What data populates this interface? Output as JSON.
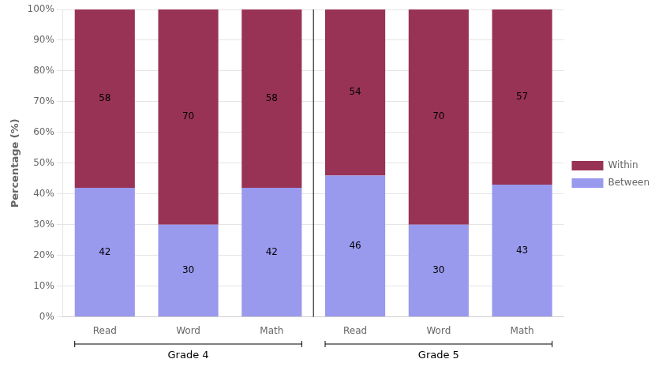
{
  "chart_data": {
    "type": "bar",
    "stacked": true,
    "data_labels": true,
    "grid": true,
    "legend": "right",
    "ylabel": "Percentage (%)",
    "categories": [
      "Read",
      "Word",
      "Math",
      "Read",
      "Word",
      "Math"
    ],
    "group_labels": [
      "Grade 4",
      "Grade 5"
    ],
    "series": [
      {
        "name": "Between",
        "color": "#9999ee",
        "values": [
          42,
          30,
          42,
          46,
          30,
          43
        ]
      },
      {
        "name": "Within",
        "color": "#993355",
        "values": [
          58,
          70,
          58,
          54,
          70,
          57
        ]
      }
    ],
    "ylim": [
      0,
      100
    ],
    "yticks": [
      {
        "value": 0,
        "label": "0%"
      },
      {
        "value": 10,
        "label": "10%"
      },
      {
        "value": 20,
        "label": "20%"
      },
      {
        "value": 30,
        "label": "30%"
      },
      {
        "value": 40,
        "label": "40%"
      },
      {
        "value": 50,
        "label": "50%"
      },
      {
        "value": 60,
        "label": "60%"
      },
      {
        "value": 70,
        "label": "70%"
      },
      {
        "value": 80,
        "label": "80%"
      },
      {
        "value": 90,
        "label": "90%"
      },
      {
        "value": 100,
        "label": "100%"
      }
    ]
  }
}
